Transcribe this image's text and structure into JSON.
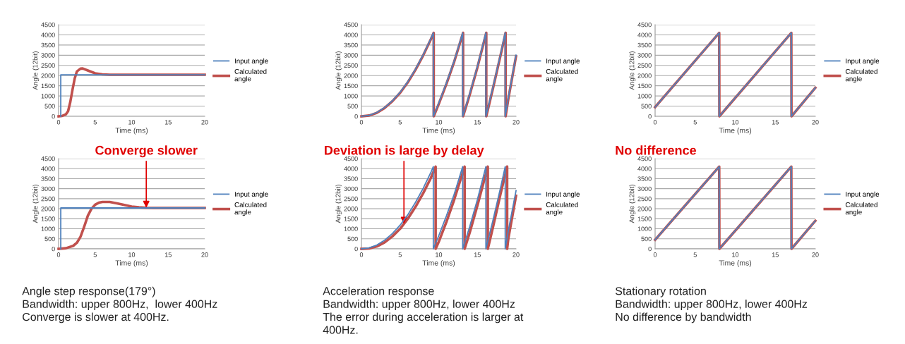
{
  "chart_data": [
    {
      "type": "line",
      "xlabel": "Time (ms)",
      "ylabel": "Angle (12bit)",
      "xlim": [
        0,
        20
      ],
      "xticks": [
        0,
        5,
        10,
        15,
        20
      ],
      "ylim": [
        0,
        4500
      ],
      "yticks": [
        0,
        500,
        1000,
        1500,
        2000,
        2500,
        3000,
        3500,
        4000,
        4500
      ],
      "grid": "y",
      "legend": "right",
      "series": [
        {
          "name": "Input angle",
          "color": "#4f81bd",
          "x": [
            0.3,
            0.3,
            20
          ],
          "values": [
            0,
            2040,
            2040
          ]
        },
        {
          "name": "Calculated angle",
          "color": "#c0504d",
          "x": [
            0,
            0.5,
            1,
            1.3,
            1.6,
            1.9,
            2.2,
            2.5,
            3,
            3.3,
            4,
            5,
            6,
            7,
            20
          ],
          "values": [
            0,
            20,
            100,
            250,
            700,
            1300,
            1850,
            2200,
            2340,
            2350,
            2250,
            2110,
            2060,
            2040,
            2040
          ]
        }
      ]
    },
    {
      "type": "line",
      "xlabel": "Time (ms)",
      "ylabel": "Angle (12bit)",
      "xlim": [
        0,
        20
      ],
      "xticks": [
        0,
        5,
        10,
        15,
        20
      ],
      "ylim": [
        0,
        4500
      ],
      "yticks": [
        0,
        500,
        1000,
        1500,
        2000,
        2500,
        3000,
        3500,
        4000,
        4500
      ],
      "grid": "y",
      "legend": "right",
      "series": [
        {
          "name": "Input angle",
          "color": "#4f81bd",
          "x": [
            0,
            1,
            2,
            3,
            4,
            5,
            6,
            7,
            8,
            9,
            9.3,
            9.3,
            10,
            11,
            12,
            13.1,
            13.1,
            14,
            15,
            16.1,
            16.1,
            17,
            18,
            18.6,
            18.6,
            19,
            20
          ],
          "values": [
            0,
            50,
            190,
            430,
            760,
            1180,
            1700,
            2320,
            3030,
            3830,
            4100,
            0,
            650,
            1650,
            2720,
            4100,
            0,
            1100,
            2450,
            4100,
            0,
            1400,
            3050,
            4100,
            0,
            900,
            3000
          ]
        },
        {
          "name": "Calculated angle",
          "color": "#c0504d",
          "x": [
            0,
            1,
            2,
            3,
            4,
            5,
            6,
            7,
            8,
            9,
            9.35,
            9.35,
            10,
            11,
            12,
            13.15,
            13.15,
            14,
            15,
            16.15,
            16.15,
            17,
            18,
            18.65,
            18.65,
            19,
            20
          ],
          "values": [
            0,
            40,
            170,
            410,
            740,
            1150,
            1670,
            2290,
            3000,
            3800,
            4100,
            0,
            600,
            1600,
            2680,
            4100,
            0,
            1050,
            2400,
            4100,
            0,
            1350,
            3000,
            4100,
            0,
            850,
            2950
          ]
        }
      ]
    },
    {
      "type": "line",
      "xlabel": "Time (ms)",
      "ylabel": "Angle (12bit)",
      "xlim": [
        0,
        20
      ],
      "xticks": [
        0,
        5,
        10,
        15,
        20
      ],
      "ylim": [
        0,
        4500
      ],
      "yticks": [
        0,
        500,
        1000,
        1500,
        2000,
        2500,
        3000,
        3500,
        4000,
        4500
      ],
      "grid": "y",
      "legend": "right",
      "series": [
        {
          "name": "Input angle",
          "color": "#4f81bd",
          "x": [
            0,
            8,
            8,
            17,
            17,
            20
          ],
          "values": [
            450,
            4100,
            0,
            4100,
            0,
            1400
          ]
        },
        {
          "name": "Calculated angle",
          "color": "#c0504d",
          "x": [
            0,
            8,
            8.02,
            17,
            17.02,
            20
          ],
          "values": [
            450,
            4100,
            0,
            4100,
            0,
            1400
          ]
        }
      ]
    },
    {
      "type": "line",
      "xlabel": "Time (ms)",
      "ylabel": "Angle (12bit)",
      "xlim": [
        0,
        20
      ],
      "xticks": [
        0,
        5,
        10,
        15,
        20
      ],
      "ylim": [
        0,
        4500
      ],
      "yticks": [
        0,
        500,
        1000,
        1500,
        2000,
        2500,
        3000,
        3500,
        4000,
        4500
      ],
      "grid": "y",
      "legend": "right",
      "annotations": [
        {
          "text": "Converge slower",
          "x": 12,
          "y": 2050
        },
        "Angle step response(179°)\nBandwidth: upper 800Hz,  lower 400Hz\nConverge is slower at 400Hz."
      ],
      "series": [
        {
          "name": "Input angle",
          "color": "#4f81bd",
          "x": [
            0.3,
            0.3,
            20
          ],
          "values": [
            0,
            2040,
            2040
          ]
        },
        {
          "name": "Calculated angle",
          "color": "#c0504d",
          "x": [
            0,
            1,
            2,
            2.5,
            3,
            3.5,
            4,
            4.5,
            5,
            5.5,
            6,
            7,
            8,
            9,
            10,
            11,
            12,
            13,
            20
          ],
          "values": [
            0,
            30,
            150,
            300,
            600,
            1100,
            1650,
            2000,
            2200,
            2300,
            2340,
            2340,
            2270,
            2190,
            2110,
            2070,
            2050,
            2040,
            2040
          ]
        }
      ]
    },
    {
      "type": "line",
      "xlabel": "Time (ms)",
      "ylabel": "Angle (12bit)",
      "xlim": [
        0,
        20
      ],
      "xticks": [
        0,
        5,
        10,
        15,
        20
      ],
      "ylim": [
        0,
        4500
      ],
      "yticks": [
        0,
        500,
        1000,
        1500,
        2000,
        2500,
        3000,
        3500,
        4000,
        4500
      ],
      "grid": "y",
      "legend": "right",
      "annotations": [
        {
          "text": "Deviation is large by delay",
          "x": 5.5,
          "y": 1250
        },
        "Acceleration response\nBandwidth: upper 800Hz, lower 400Hz\nThe error during acceleration is larger at\n400Hz."
      ],
      "series": [
        {
          "name": "Input angle",
          "color": "#4f81bd",
          "x": [
            0,
            1,
            2,
            3,
            4,
            5,
            6,
            7,
            8,
            9,
            9.3,
            9.3,
            10,
            11,
            12,
            13.1,
            13.1,
            14,
            15,
            16.1,
            16.1,
            17,
            18,
            18.6,
            18.6,
            19,
            20
          ],
          "values": [
            0,
            50,
            190,
            430,
            760,
            1180,
            1700,
            2320,
            3030,
            3830,
            4100,
            0,
            650,
            1650,
            2720,
            4100,
            0,
            1100,
            2450,
            4100,
            0,
            1400,
            3050,
            4100,
            0,
            900,
            2900
          ]
        },
        {
          "name": "Calculated angle",
          "color": "#c0504d",
          "x": [
            0,
            1,
            2,
            3,
            4,
            5,
            6,
            7,
            8,
            9,
            9.6,
            9.6,
            10,
            11,
            12,
            13.35,
            13.35,
            14,
            15,
            16.35,
            16.35,
            17,
            18,
            18.85,
            18.85,
            19,
            20
          ],
          "values": [
            0,
            20,
            120,
            320,
            620,
            1000,
            1500,
            2100,
            2780,
            3550,
            4100,
            0,
            350,
            1350,
            2450,
            4100,
            0,
            800,
            2150,
            4100,
            0,
            1050,
            2750,
            4100,
            0,
            500,
            2650
          ]
        }
      ]
    },
    {
      "type": "line",
      "xlabel": "Time (ms)",
      "ylabel": "Angle (12bit)",
      "xlim": [
        0,
        20
      ],
      "xticks": [
        0,
        5,
        10,
        15,
        20
      ],
      "ylim": [
        0,
        4500
      ],
      "yticks": [
        0,
        500,
        1000,
        1500,
        2000,
        2500,
        3000,
        3500,
        4000,
        4500
      ],
      "grid": "y",
      "legend": "right",
      "annotations": [
        "No difference",
        "Stationary rotation\nBandwidth: upper 800Hz, lower 400Hz\nNo difference by bandwidth"
      ],
      "series": [
        {
          "name": "Input angle",
          "color": "#4f81bd",
          "x": [
            0,
            8,
            8,
            17,
            17,
            20
          ],
          "values": [
            450,
            4100,
            0,
            4100,
            0,
            1400
          ]
        },
        {
          "name": "Calculated angle",
          "color": "#c0504d",
          "x": [
            0,
            8,
            8.02,
            17,
            17.02,
            20
          ],
          "values": [
            450,
            4100,
            0,
            4100,
            0,
            1400
          ]
        }
      ]
    }
  ]
}
